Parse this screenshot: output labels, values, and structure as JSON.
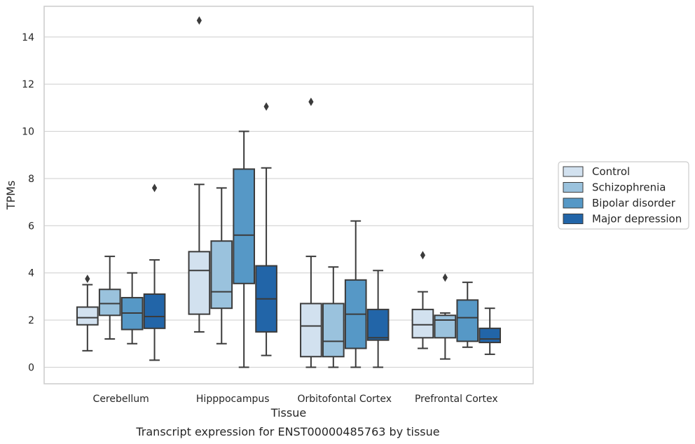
{
  "chart_data": {
    "type": "box",
    "xlabel": "Tissue",
    "ylabel": "TPMs",
    "caption": "Transcript expression for ENST00000485763 by tissue",
    "ylim": [
      -0.7,
      15.3
    ],
    "yticks": [
      0,
      2,
      4,
      6,
      8,
      10,
      12,
      14
    ],
    "grid": "horizontal",
    "legend_position": "right, outside plot",
    "categories": [
      "Cerebellum",
      "Hipppocampus",
      "Orbitofontal Cortex",
      "Prefrontal Cortex"
    ],
    "series": [
      {
        "name": "Control",
        "color": "#d2e1ef",
        "boxes": [
          {
            "whisker_low": 0.7,
            "q1": 1.8,
            "median": 2.1,
            "q3": 2.55,
            "whisker_high": 3.5,
            "outliers": [
              3.75
            ]
          },
          {
            "whisker_low": 1.5,
            "q1": 2.25,
            "median": 4.1,
            "q3": 4.9,
            "whisker_high": 7.75,
            "outliers": [
              14.7
            ]
          },
          {
            "whisker_low": 0.0,
            "q1": 0.45,
            "median": 1.75,
            "q3": 2.7,
            "whisker_high": 4.7,
            "outliers": [
              11.25
            ]
          },
          {
            "whisker_low": 0.8,
            "q1": 1.25,
            "median": 1.8,
            "q3": 2.45,
            "whisker_high": 3.2,
            "outliers": [
              4.75
            ]
          }
        ]
      },
      {
        "name": "Schizophrenia",
        "color": "#9ac2dd",
        "boxes": [
          {
            "whisker_low": 1.2,
            "q1": 2.2,
            "median": 2.7,
            "q3": 3.3,
            "whisker_high": 4.7,
            "outliers": []
          },
          {
            "whisker_low": 1.0,
            "q1": 2.5,
            "median": 3.2,
            "q3": 5.35,
            "whisker_high": 7.6,
            "outliers": []
          },
          {
            "whisker_low": 0.0,
            "q1": 0.45,
            "median": 1.1,
            "q3": 2.7,
            "whisker_high": 4.25,
            "outliers": []
          },
          {
            "whisker_low": 0.35,
            "q1": 1.25,
            "median": 2.0,
            "q3": 2.2,
            "whisker_high": 2.3,
            "outliers": [
              3.8
            ]
          }
        ]
      },
      {
        "name": "Bipolar disorder",
        "color": "#5698c6",
        "boxes": [
          {
            "whisker_low": 1.0,
            "q1": 1.6,
            "median": 2.3,
            "q3": 2.95,
            "whisker_high": 4.0,
            "outliers": []
          },
          {
            "whisker_low": 0.0,
            "q1": 3.55,
            "median": 5.6,
            "q3": 8.4,
            "whisker_high": 10.0,
            "outliers": []
          },
          {
            "whisker_low": 0.0,
            "q1": 0.8,
            "median": 2.25,
            "q3": 3.7,
            "whisker_high": 6.2,
            "outliers": []
          },
          {
            "whisker_low": 0.85,
            "q1": 1.1,
            "median": 2.1,
            "q3": 2.85,
            "whisker_high": 3.6,
            "outliers": []
          }
        ]
      },
      {
        "name": "Major depression",
        "color": "#2265a8",
        "boxes": [
          {
            "whisker_low": 0.3,
            "q1": 1.65,
            "median": 2.15,
            "q3": 3.1,
            "whisker_high": 4.55,
            "outliers": [
              7.6
            ]
          },
          {
            "whisker_low": 0.5,
            "q1": 1.5,
            "median": 2.9,
            "q3": 4.3,
            "whisker_high": 8.45,
            "outliers": [
              11.05
            ]
          },
          {
            "whisker_low": 0.0,
            "q1": 1.15,
            "median": 1.25,
            "q3": 2.45,
            "whisker_high": 4.1,
            "outliers": []
          },
          {
            "whisker_low": 0.55,
            "q1": 1.05,
            "median": 1.2,
            "q3": 1.65,
            "whisker_high": 2.5,
            "outliers": []
          }
        ]
      }
    ]
  },
  "style": {
    "grid_color": "#d3d3d3",
    "frame_color": "#cccccc",
    "line_color": "#3b3b3b"
  }
}
